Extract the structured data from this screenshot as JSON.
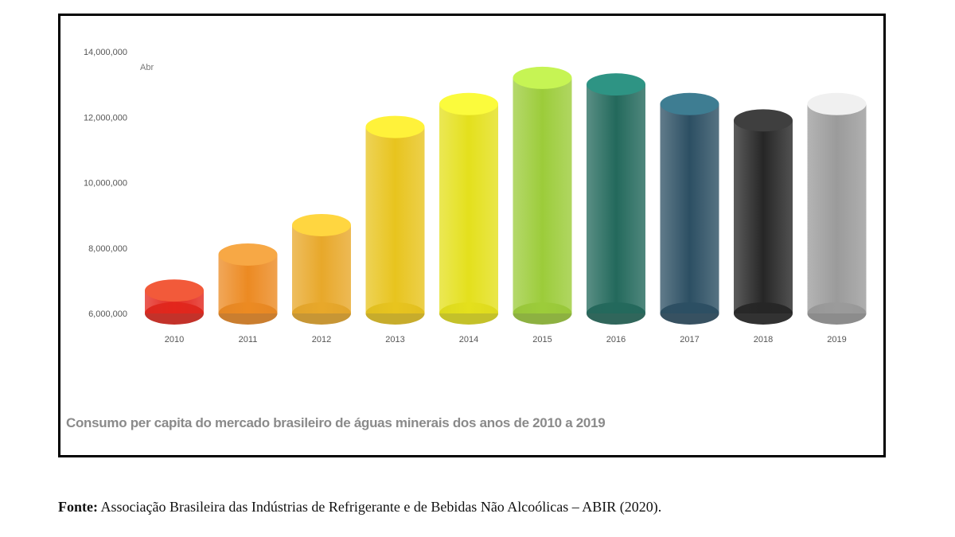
{
  "chart_data": {
    "type": "bar",
    "style": "3d-cylinder",
    "categories": [
      "2010",
      "2011",
      "2012",
      "2013",
      "2014",
      "2015",
      "2016",
      "2017",
      "2018",
      "2019"
    ],
    "values": [
      6700000,
      7800000,
      8700000,
      11700000,
      12400000,
      13200000,
      13000000,
      12400000,
      11900000,
      12400000
    ],
    "colors": [
      "#e3261c",
      "#ec8a22",
      "#e8a82a",
      "#e8c41e",
      "#e4e01c",
      "#9ccc3a",
      "#23695c",
      "#2c4f63",
      "#262626",
      "#9b9b9b"
    ],
    "top_colors": [
      "#f25a3a",
      "#f7a845",
      "#ffd640",
      "#fff23a",
      "#fbfb3c",
      "#c6f454",
      "#2e9484",
      "#3e7d92",
      "#3f3f3f",
      "#f0f0f0"
    ],
    "ylim": [
      6000000,
      14000000
    ],
    "yticks": [
      "14,000,000",
      "12,000,000",
      "10,000,000",
      "8,000,000",
      "6,000,000"
    ],
    "unit_label": "Abr",
    "title": "Consumo per capita do mercado brasileiro de águas minerais dos anos de 2010 a 2019",
    "grid": false,
    "legend": "none"
  },
  "source": {
    "label": "Fonte:",
    "text": " Associação Brasileira das Indústrias de Refrigerante e de Bebidas Não Alcoólicas – ABIR (2020)."
  }
}
